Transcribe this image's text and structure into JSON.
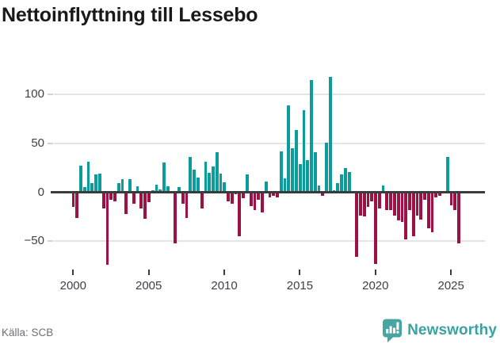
{
  "title": "Nettoinflyttning till Lessebo",
  "source": "Källa: SCB",
  "branding": {
    "name": "Newsworthy",
    "logo_icon": "bar-chart-speech-bubble",
    "color": "#3ba29f",
    "icon_color": "#47a5a1"
  },
  "colors": {
    "positive": "#0c9c9c",
    "negative": "#9e1145",
    "gridline": "#e4e4e4",
    "zero_line": "#3b3b3b",
    "axis_text": "#3f3f44",
    "title_text": "#191919",
    "source_text": "#6e6e78"
  },
  "y_axis": {
    "ticks": [
      {
        "value": 100,
        "label": "100"
      },
      {
        "value": 50,
        "label": "50"
      },
      {
        "value": 0,
        "label": "0"
      },
      {
        "value": -50,
        "label": "−50"
      }
    ]
  },
  "x_axis": {
    "tick_labels": [
      "2000",
      "2005",
      "2010",
      "2015",
      "2020",
      "2025"
    ]
  },
  "chart_data": {
    "type": "bar",
    "title": "Nettoinflyttning till Lessebo",
    "x_start": "2000 Q1",
    "x_frequency": "quarterly",
    "x_tick_labels": [
      "2000",
      "2005",
      "2010",
      "2015",
      "2020",
      "2025"
    ],
    "y_tick_labels": [
      "100",
      "50",
      "0",
      "−50"
    ],
    "ylim": [
      -85,
      125
    ],
    "grid": "horizontal-only",
    "legend": "none",
    "positive_color": "#0c9c9c",
    "negative_color": "#9e1145",
    "values": [
      -15,
      -26,
      27,
      5,
      31,
      9,
      18,
      19,
      -17,
      -74,
      -8,
      -9,
      9,
      13,
      -22,
      13,
      -12,
      6,
      -17,
      -27,
      -10,
      2,
      8,
      3,
      30,
      6,
      1,
      -52,
      5,
      -12,
      -26,
      36,
      23,
      15,
      -17,
      31,
      20,
      26,
      41,
      19,
      10,
      -9,
      -12,
      -2,
      -45,
      -6,
      18,
      -14,
      -18,
      -8,
      -21,
      11,
      -5,
      -4,
      -5,
      42,
      14,
      89,
      45,
      64,
      29,
      84,
      33,
      115,
      41,
      7,
      -4,
      51,
      118,
      2,
      9,
      18,
      25,
      21,
      0,
      -66,
      -24,
      -25,
      -15,
      -9,
      -73,
      -17,
      7,
      -18,
      -18,
      -24,
      -29,
      -30,
      -48,
      -18,
      -45,
      -24,
      -28,
      -8,
      -37,
      -41,
      -5,
      -4,
      0,
      36,
      -13,
      -18,
      -52
    ]
  }
}
